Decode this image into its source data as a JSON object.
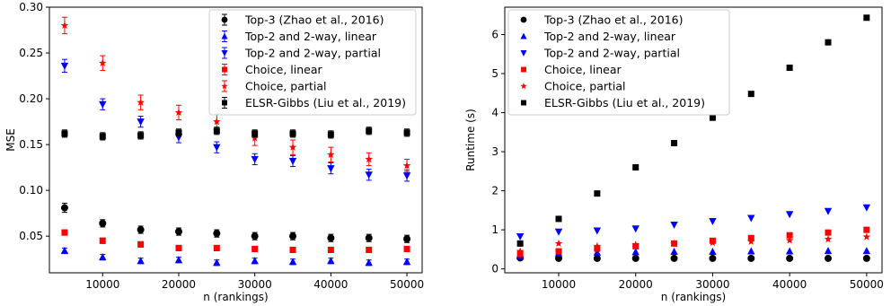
{
  "chart_data": [
    {
      "type": "scatter",
      "title": "",
      "xlabel": "n (rankings)",
      "ylabel": "MSE",
      "xlim": [
        3000,
        52000
      ],
      "ylim": [
        0.01,
        0.3
      ],
      "xticks": [
        10000,
        20000,
        30000,
        40000,
        50000
      ],
      "yticks": [
        0.05,
        0.1,
        0.15,
        0.2,
        0.25,
        0.3
      ],
      "ytick_labels": [
        "0.05",
        "0.10",
        "0.15",
        "0.20",
        "0.25",
        "0.30"
      ],
      "grid": false,
      "legend_position": "top-right",
      "x": [
        5000,
        10000,
        15000,
        20000,
        25000,
        30000,
        35000,
        40000,
        45000,
        50000
      ],
      "series": [
        {
          "name": "Top-3 (Zhao et al., 2016)",
          "color": "#000000",
          "marker": "circle",
          "values": [
            0.081,
            0.064,
            0.057,
            0.055,
            0.053,
            0.05,
            0.05,
            0.048,
            0.048,
            0.047
          ],
          "errors": [
            0.005,
            0.004,
            0.004,
            0.004,
            0.004,
            0.004,
            0.004,
            0.004,
            0.004,
            0.004
          ]
        },
        {
          "name": "Top-2 and 2-way, linear",
          "color": "#0000ff",
          "marker": "triangle-up",
          "values": [
            0.034,
            0.027,
            0.023,
            0.024,
            0.021,
            0.023,
            0.022,
            0.023,
            0.021,
            0.022
          ],
          "errors": [
            0.003,
            0.003,
            0.003,
            0.003,
            0.003,
            0.003,
            0.003,
            0.003,
            0.003,
            0.003
          ]
        },
        {
          "name": "Top-2 and 2-way, partial",
          "color": "#0000ff",
          "marker": "triangle-down",
          "values": [
            0.236,
            0.194,
            0.175,
            0.158,
            0.147,
            0.134,
            0.132,
            0.124,
            0.117,
            0.116
          ],
          "errors": [
            0.007,
            0.006,
            0.006,
            0.006,
            0.006,
            0.006,
            0.006,
            0.006,
            0.006,
            0.006
          ]
        },
        {
          "name": "Choice, linear",
          "color": "#ff0000",
          "marker": "square",
          "values": [
            0.054,
            0.045,
            0.041,
            0.037,
            0.037,
            0.036,
            0.035,
            0.035,
            0.035,
            0.036
          ],
          "errors": [
            0.003,
            0.003,
            0.003,
            0.003,
            0.003,
            0.003,
            0.003,
            0.003,
            0.003,
            0.003
          ]
        },
        {
          "name": "Choice, partial",
          "color": "#ff0000",
          "marker": "star",
          "values": [
            0.28,
            0.239,
            0.196,
            0.185,
            0.175,
            0.157,
            0.147,
            0.139,
            0.134,
            0.127
          ],
          "errors": [
            0.009,
            0.008,
            0.008,
            0.008,
            0.008,
            0.008,
            0.008,
            0.008,
            0.007,
            0.007
          ]
        },
        {
          "name": "ELSR-Gibbs (Liu et al., 2019)",
          "color": "#000000",
          "marker": "square",
          "values": [
            0.162,
            0.159,
            0.16,
            0.163,
            0.165,
            0.162,
            0.162,
            0.161,
            0.165,
            0.163
          ],
          "errors": [
            0.004,
            0.004,
            0.004,
            0.004,
            0.004,
            0.004,
            0.004,
            0.004,
            0.004,
            0.004
          ]
        }
      ]
    },
    {
      "type": "scatter",
      "title": "",
      "xlabel": "n (rankings)",
      "ylabel": "Runtime (s)",
      "xlim": [
        3000,
        52000
      ],
      "ylim": [
        -0.1,
        6.7
      ],
      "xticks": [
        10000,
        20000,
        30000,
        40000,
        50000
      ],
      "yticks": [
        0,
        1,
        2,
        3,
        4,
        5,
        6
      ],
      "ytick_labels": [
        "0",
        "1",
        "2",
        "3",
        "4",
        "5",
        "6"
      ],
      "grid": false,
      "legend_position": "top-left",
      "x": [
        5000,
        10000,
        15000,
        20000,
        25000,
        30000,
        35000,
        40000,
        45000,
        50000
      ],
      "series": [
        {
          "name": "Top-3 (Zhao et al., 2016)",
          "color": "#000000",
          "marker": "circle",
          "values": [
            0.28,
            0.27,
            0.27,
            0.27,
            0.27,
            0.27,
            0.27,
            0.27,
            0.27,
            0.27
          ]
        },
        {
          "name": "Top-2 and 2-way, linear",
          "color": "#0000ff",
          "marker": "triangle-up",
          "values": [
            0.33,
            0.4,
            0.42,
            0.43,
            0.44,
            0.44,
            0.45,
            0.45,
            0.46,
            0.46
          ]
        },
        {
          "name": "Top-2 and 2-way, partial",
          "color": "#0000ff",
          "marker": "triangle-down",
          "values": [
            0.83,
            0.95,
            0.98,
            1.03,
            1.13,
            1.22,
            1.3,
            1.4,
            1.48,
            1.57
          ]
        },
        {
          "name": "Choice, linear",
          "color": "#ff0000",
          "marker": "square",
          "values": [
            0.38,
            0.45,
            0.52,
            0.58,
            0.65,
            0.72,
            0.79,
            0.86,
            0.93,
            1.0
          ]
        },
        {
          "name": "Choice, partial",
          "color": "#ff0000",
          "marker": "star",
          "values": [
            0.45,
            0.65,
            0.58,
            0.62,
            0.65,
            0.67,
            0.7,
            0.73,
            0.76,
            0.82
          ]
        },
        {
          "name": "ELSR-Gibbs (Liu et al., 2019)",
          "color": "#000000",
          "marker": "square",
          "values": [
            0.65,
            1.28,
            1.93,
            2.6,
            3.22,
            3.87,
            4.48,
            5.15,
            5.8,
            6.43
          ]
        }
      ]
    }
  ]
}
